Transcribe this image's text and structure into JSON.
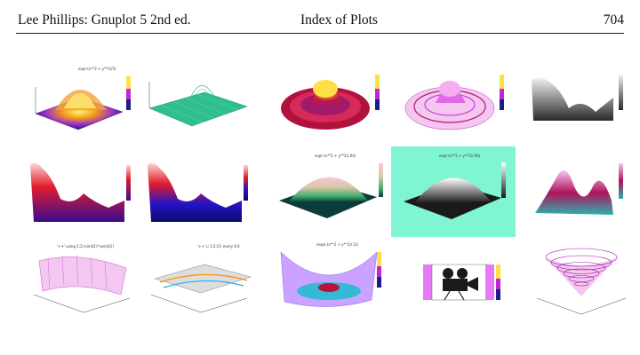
{
  "page_header": {
    "author_title": "Lee Phillips: Gnuplot 5 2nd ed.",
    "section": "Index of Plots",
    "page_number": "704"
  },
  "plots": [
    {
      "caption": "exp(-(x**2 + y**2)/5)"
    },
    {
      "caption": ""
    },
    {
      "caption": ""
    },
    {
      "caption": ""
    },
    {
      "caption": ""
    },
    {
      "caption": ""
    },
    {
      "caption": ""
    },
    {
      "caption": "exp(-(x**2 + y**2)/.04)"
    },
    {
      "caption": "exp(-(x**2 + y**2)/.04)"
    },
    {
      "caption": ""
    },
    {
      "caption": "'++' using 1:2:(sin($1)*cos($2))"
    },
    {
      "caption": "'++' u 1:2:(1) every 4:4"
    },
    {
      "caption": "(exp(-(x**2 + y**2)/.5))"
    },
    {
      "caption": ""
    },
    {
      "caption": ""
    }
  ],
  "colors": {
    "teal_background": "#7ff5d3",
    "rule": "#222222"
  }
}
